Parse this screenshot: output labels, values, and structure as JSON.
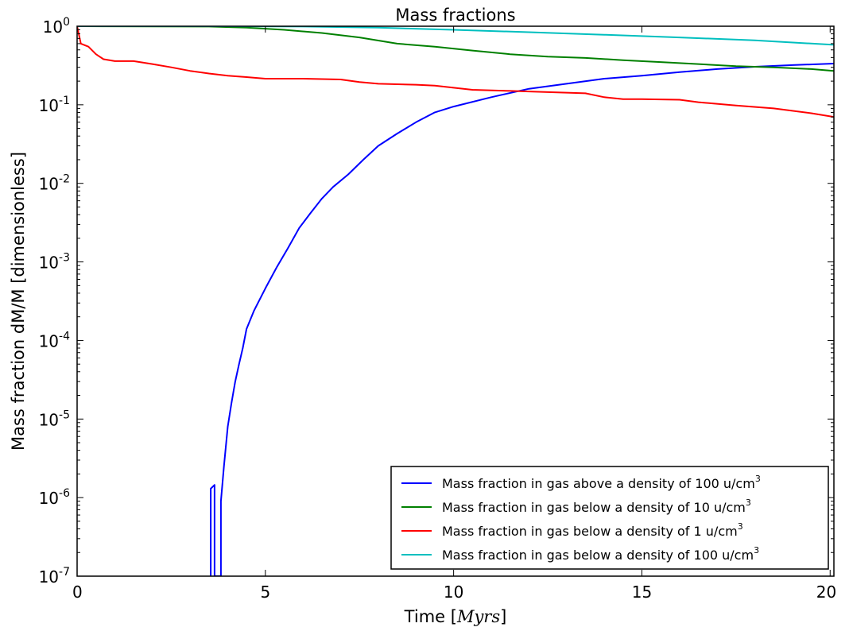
{
  "chart_data": {
    "type": "line",
    "title": "Mass fractions",
    "xlabel_text": "Time [",
    "xlabel_math": "Myrs",
    "xlabel_close": "]",
    "ylabel": "Mass fraction dM/M  [dimensionless]",
    "xlim": [
      0,
      20.1
    ],
    "ylim": [
      1e-07,
      1
    ],
    "yscale": "log",
    "grid": false,
    "legend_position": "lower right",
    "x_ticks": [
      {
        "value": 0,
        "label": "0"
      },
      {
        "value": 5,
        "label": "5"
      },
      {
        "value": 10,
        "label": "10"
      },
      {
        "value": 15,
        "label": "15"
      },
      {
        "value": 20,
        "label": "20"
      }
    ],
    "y_ticks": [
      {
        "value": 1e-07,
        "base": "10",
        "exp": "-7"
      },
      {
        "value": 1e-06,
        "base": "10",
        "exp": "-6"
      },
      {
        "value": 1e-05,
        "base": "10",
        "exp": "-5"
      },
      {
        "value": 0.0001,
        "base": "10",
        "exp": "-4"
      },
      {
        "value": 0.001,
        "base": "10",
        "exp": "-3"
      },
      {
        "value": 0.01,
        "base": "10",
        "exp": "-2"
      },
      {
        "value": 0.1,
        "base": "10",
        "exp": "-1"
      },
      {
        "value": 1,
        "base": "10",
        "exp": "0"
      }
    ],
    "series": [
      {
        "name": "Mass fraction in gas above a density of 100 u/cm",
        "name_sup": "3",
        "color": "#0000ff",
        "points": [
          [
            3.55,
            1e-07
          ],
          [
            3.55,
            1.3e-06
          ],
          [
            3.65,
            1.45e-06
          ],
          [
            3.65,
            1e-07
          ],
          [
            3.82,
            1e-07
          ],
          [
            3.82,
            9e-07
          ],
          [
            3.9,
            2.5e-06
          ],
          [
            4.0,
            8e-06
          ],
          [
            4.1,
            1.6e-05
          ],
          [
            4.2,
            3e-05
          ],
          [
            4.3,
            5e-05
          ],
          [
            4.4,
            8e-05
          ],
          [
            4.5,
            0.00014
          ],
          [
            4.7,
            0.00024
          ],
          [
            5.0,
            0.00046
          ],
          [
            5.3,
            0.00085
          ],
          [
            5.6,
            0.0015
          ],
          [
            5.9,
            0.0027
          ],
          [
            6.2,
            0.0042
          ],
          [
            6.5,
            0.0064
          ],
          [
            6.8,
            0.009
          ],
          [
            7.2,
            0.013
          ],
          [
            7.6,
            0.02
          ],
          [
            8.0,
            0.03
          ],
          [
            8.5,
            0.043
          ],
          [
            9.0,
            0.06
          ],
          [
            9.5,
            0.08
          ],
          [
            10.0,
            0.095
          ],
          [
            11.0,
            0.125
          ],
          [
            12.0,
            0.16
          ],
          [
            13.0,
            0.185
          ],
          [
            14.0,
            0.215
          ],
          [
            15.0,
            0.235
          ],
          [
            16.0,
            0.26
          ],
          [
            17.0,
            0.285
          ],
          [
            18.0,
            0.305
          ],
          [
            19.0,
            0.32
          ],
          [
            20.1,
            0.335
          ]
        ]
      },
      {
        "name": "Mass fraction in gas below a density of 10 u/cm",
        "name_sup": "3",
        "color": "#008000",
        "points": [
          [
            0,
            1.0
          ],
          [
            3.5,
            0.99
          ],
          [
            4.5,
            0.96
          ],
          [
            5.5,
            0.9
          ],
          [
            6.5,
            0.82
          ],
          [
            7.5,
            0.72
          ],
          [
            8.5,
            0.6
          ],
          [
            9.5,
            0.55
          ],
          [
            10.5,
            0.49
          ],
          [
            11.5,
            0.44
          ],
          [
            12.5,
            0.41
          ],
          [
            13.5,
            0.395
          ],
          [
            14.5,
            0.37
          ],
          [
            15.5,
            0.35
          ],
          [
            16.5,
            0.33
          ],
          [
            17.5,
            0.31
          ],
          [
            18.5,
            0.3
          ],
          [
            19.5,
            0.285
          ],
          [
            20.1,
            0.27
          ]
        ]
      },
      {
        "name": "Mass fraction in gas below a density of 1 u/cm",
        "name_sup": "3",
        "color": "#ff0000",
        "points": [
          [
            0,
            1.0
          ],
          [
            0.1,
            0.6
          ],
          [
            0.3,
            0.55
          ],
          [
            0.5,
            0.44
          ],
          [
            0.7,
            0.38
          ],
          [
            1.0,
            0.36
          ],
          [
            1.5,
            0.36
          ],
          [
            2.0,
            0.33
          ],
          [
            2.5,
            0.3
          ],
          [
            3.0,
            0.27
          ],
          [
            3.5,
            0.25
          ],
          [
            4.0,
            0.235
          ],
          [
            4.5,
            0.225
          ],
          [
            5.0,
            0.215
          ],
          [
            5.5,
            0.215
          ],
          [
            6.0,
            0.215
          ],
          [
            7.0,
            0.21
          ],
          [
            7.5,
            0.195
          ],
          [
            8.0,
            0.185
          ],
          [
            9.0,
            0.18
          ],
          [
            9.5,
            0.175
          ],
          [
            10.0,
            0.165
          ],
          [
            10.5,
            0.155
          ],
          [
            11.5,
            0.15
          ],
          [
            12.5,
            0.145
          ],
          [
            13.5,
            0.14
          ],
          [
            14.0,
            0.125
          ],
          [
            14.5,
            0.118
          ],
          [
            15.0,
            0.118
          ],
          [
            16.0,
            0.116
          ],
          [
            16.5,
            0.108
          ],
          [
            17.5,
            0.098
          ],
          [
            18.5,
            0.09
          ],
          [
            19.5,
            0.078
          ],
          [
            20.1,
            0.07
          ]
        ]
      },
      {
        "name": "Mass fraction in gas below a density of 100 u/cm",
        "name_sup": "3",
        "color": "#00bfbf",
        "points": [
          [
            0,
            1.0
          ],
          [
            4.0,
            1.0
          ],
          [
            6.0,
            0.99
          ],
          [
            8.0,
            0.96
          ],
          [
            10.0,
            0.9
          ],
          [
            12.0,
            0.84
          ],
          [
            14.0,
            0.78
          ],
          [
            16.0,
            0.72
          ],
          [
            18.0,
            0.66
          ],
          [
            20.1,
            0.58
          ]
        ]
      }
    ]
  }
}
